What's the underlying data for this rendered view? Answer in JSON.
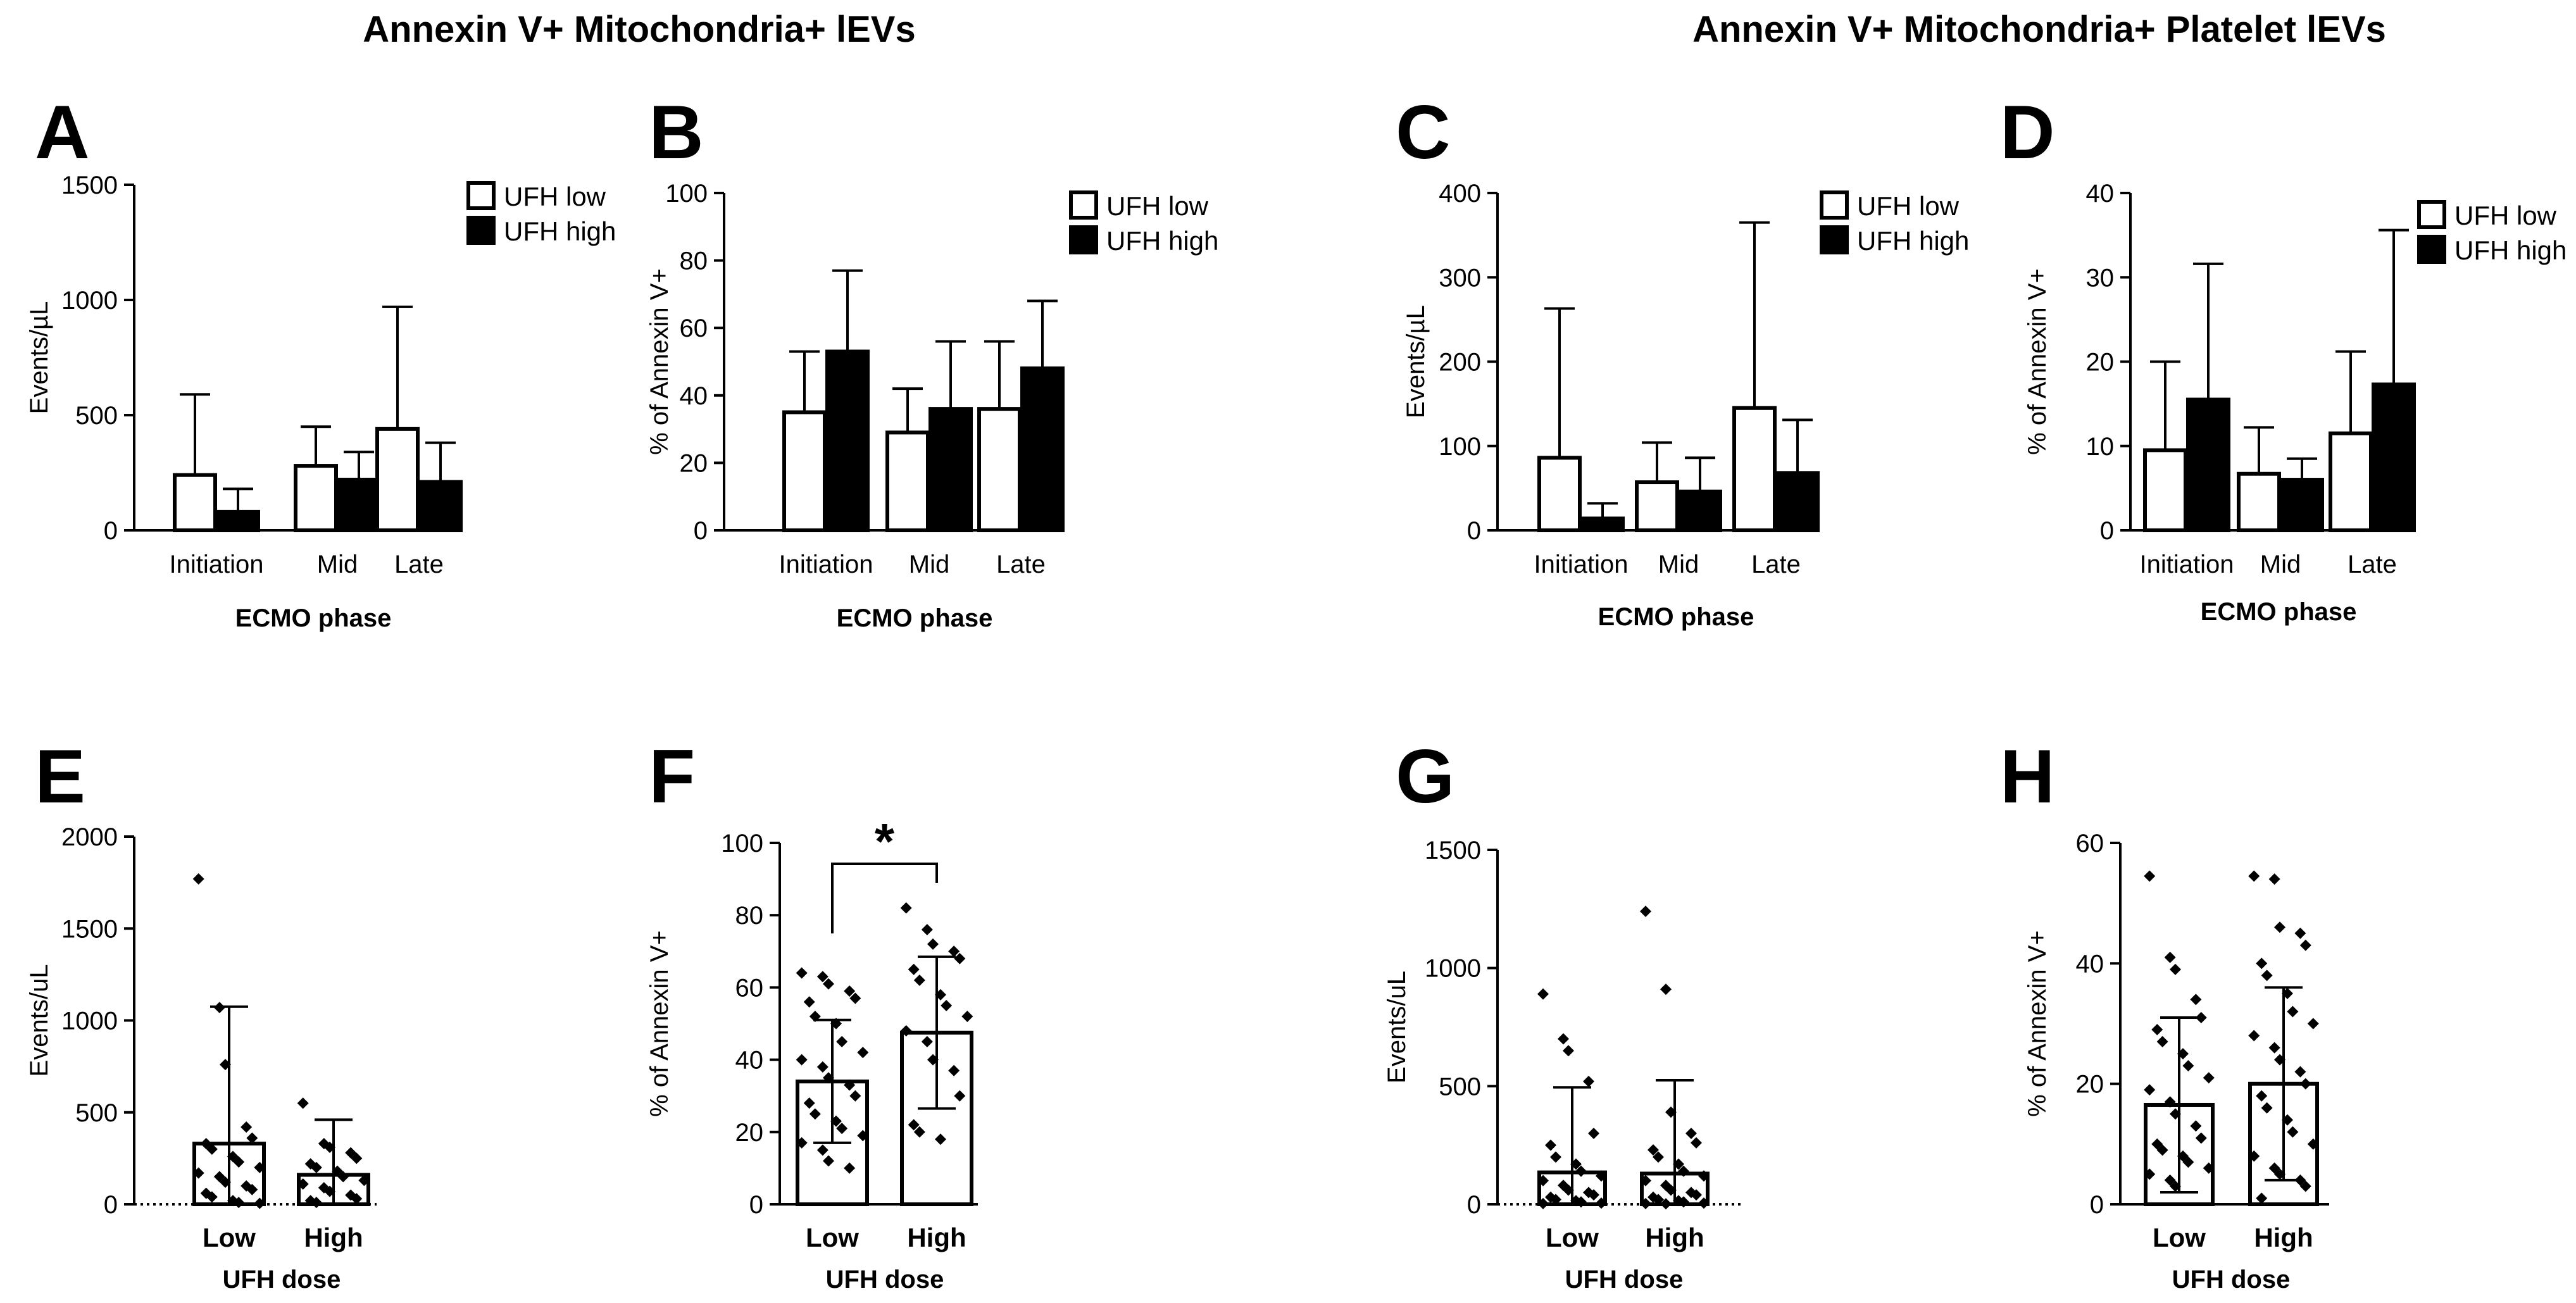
{
  "group_titles": [
    "Annexin V+ Mitochondria+ lEVs",
    "Annexin V+ Mitochondria+ Platelet  lEVs"
  ],
  "chart_data": [
    {
      "panel": "A",
      "type": "bar",
      "ylabel": "Events/µL",
      "xlabel": "ECMO phase",
      "ylim": [
        0,
        1500
      ],
      "yticks": [
        0,
        500,
        1000,
        1500
      ],
      "categories": [
        "Initiation",
        "Mid",
        "Late"
      ],
      "legend": [
        "UFH low",
        "UFH high"
      ],
      "series": [
        {
          "name": "UFH low",
          "values": [
            240,
            280,
            440
          ],
          "sd": [
            590,
            450,
            970
          ]
        },
        {
          "name": "UFH high",
          "values": [
            80,
            220,
            210
          ],
          "sd": [
            180,
            340,
            380
          ]
        }
      ]
    },
    {
      "panel": "B",
      "type": "bar",
      "ylabel": "% of Annexin V+",
      "xlabel": "ECMO phase",
      "ylim": [
        0,
        100
      ],
      "yticks": [
        0,
        20,
        40,
        60,
        80,
        100
      ],
      "categories": [
        "Initiation",
        "Mid",
        "Late"
      ],
      "legend": [
        "UFH low",
        "UFH high"
      ],
      "series": [
        {
          "name": "UFH low",
          "values": [
            35,
            29,
            36
          ],
          "sd": [
            53,
            42,
            56
          ]
        },
        {
          "name": "UFH high",
          "values": [
            53,
            36,
            48
          ],
          "sd": [
            77,
            56,
            68
          ]
        }
      ]
    },
    {
      "panel": "C",
      "type": "bar",
      "ylabel": "Events/µL",
      "xlabel": "ECMO phase",
      "ylim": [
        0,
        400
      ],
      "yticks": [
        0,
        100,
        200,
        300,
        400
      ],
      "categories": [
        "Initiation",
        "Mid",
        "Late"
      ],
      "legend": [
        "UFH low",
        "UFH high"
      ],
      "series": [
        {
          "name": "UFH low",
          "values": [
            86,
            57,
            145
          ],
          "sd": [
            263,
            104,
            365
          ]
        },
        {
          "name": "UFH high",
          "values": [
            14,
            46,
            68
          ],
          "sd": [
            32,
            86,
            131
          ]
        }
      ]
    },
    {
      "panel": "D",
      "type": "bar",
      "ylabel": "% of Annexin V+",
      "xlabel": "ECMO phase",
      "ylim": [
        0,
        40
      ],
      "yticks": [
        0,
        10,
        20,
        30,
        40
      ],
      "categories": [
        "Initiation",
        "Mid",
        "Late"
      ],
      "legend": [
        "UFH low",
        "UFH high"
      ],
      "series": [
        {
          "name": "UFH low",
          "values": [
            9.5,
            6.7,
            11.5
          ],
          "sd": [
            20,
            12.2,
            21.2
          ]
        },
        {
          "name": "UFH high",
          "values": [
            15.5,
            6,
            17.3
          ],
          "sd": [
            31.6,
            8.5,
            35.6
          ]
        }
      ]
    },
    {
      "panel": "E",
      "type": "bar",
      "ylabel": "Events/uL",
      "xlabel": "UFH dose",
      "ylim": [
        0,
        2000
      ],
      "yticks": [
        0,
        500,
        1000,
        1500,
        2000
      ],
      "categories": [
        "Low",
        "High"
      ],
      "values": [
        330,
        160
      ],
      "sd": [
        745,
        300
      ],
      "points": [
        [
          1770,
          1070,
          760,
          420,
          360,
          330,
          300,
          260,
          230,
          200,
          170,
          150,
          120,
          100,
          80,
          60,
          40,
          20,
          10,
          5
        ],
        [
          550,
          330,
          310,
          280,
          250,
          220,
          200,
          180,
          150,
          130,
          110,
          90,
          70,
          50,
          30,
          20,
          10
        ]
      ]
    },
    {
      "panel": "F",
      "type": "bar",
      "ylabel": "% of Annexin V+",
      "xlabel": "UFH dose",
      "ylim": [
        0,
        100
      ],
      "yticks": [
        0,
        20,
        40,
        60,
        80,
        100
      ],
      "categories": [
        "Low",
        "High"
      ],
      "values": [
        34,
        47.5
      ],
      "sd": [
        17,
        21
      ],
      "significance": "*",
      "points": [
        [
          64,
          63,
          61,
          59,
          57,
          56,
          52,
          50,
          45,
          42,
          40,
          38,
          35,
          33,
          30,
          28,
          25,
          23,
          21,
          19,
          17,
          15,
          12,
          10
        ],
        [
          82,
          76,
          72,
          70,
          68,
          65,
          62,
          58,
          55,
          52,
          48,
          45,
          40,
          37,
          30,
          22,
          20,
          18
        ]
      ]
    },
    {
      "panel": "G",
      "type": "bar",
      "ylabel": "Events/uL",
      "xlabel": "UFH dose",
      "ylim": [
        0,
        1500
      ],
      "yticks": [
        0,
        500,
        1000,
        1500
      ],
      "categories": [
        "Low",
        "High"
      ],
      "values": [
        135,
        130
      ],
      "sd": [
        360,
        395
      ],
      "points": [
        [
          890,
          700,
          650,
          520,
          300,
          250,
          200,
          170,
          140,
          120,
          100,
          80,
          60,
          50,
          40,
          30,
          20,
          15,
          10,
          5,
          3
        ],
        [
          1240,
          910,
          390,
          300,
          260,
          230,
          200,
          170,
          140,
          120,
          100,
          80,
          60,
          50,
          40,
          30,
          20,
          15,
          10,
          5,
          3,
          2
        ]
      ]
    },
    {
      "panel": "H",
      "type": "bar",
      "ylabel": "% of Annexin V+",
      "xlabel": "UFH dose",
      "ylim": [
        0,
        60
      ],
      "yticks": [
        0,
        20,
        40,
        60
      ],
      "categories": [
        "Low",
        "High"
      ],
      "values": [
        16.5,
        20
      ],
      "sd": [
        14.5,
        16
      ],
      "points": [
        [
          54.5,
          41,
          39,
          34,
          31,
          29,
          27,
          25,
          23,
          21,
          19,
          17,
          15,
          13,
          11,
          10,
          9,
          8,
          7,
          6,
          5,
          4,
          3
        ],
        [
          54.5,
          54,
          46,
          45,
          43,
          40,
          38,
          35,
          32,
          30,
          28,
          26,
          24,
          22,
          20,
          18,
          16,
          14,
          12,
          10,
          8,
          6,
          5,
          4,
          3,
          1
        ]
      ]
    }
  ]
}
